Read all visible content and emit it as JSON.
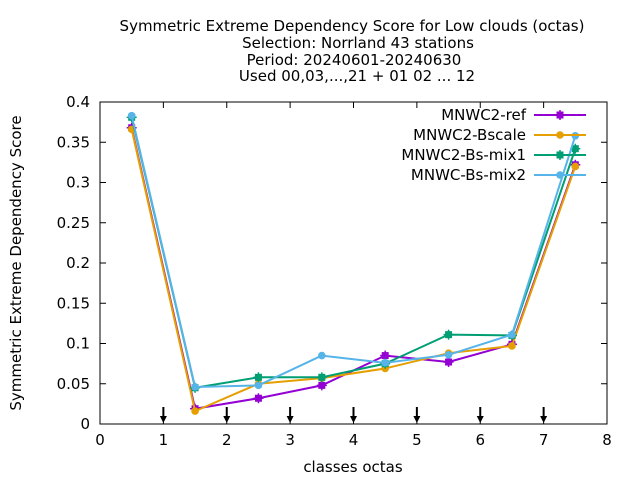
{
  "chart_data": {
    "type": "line",
    "title_lines": [
      "Symmetric Extreme Dependency Score  for Low clouds (octas)",
      "Selection: Norrland     43 stations",
      "Period: 20240601-20240630",
      "Used 00,03,...,21 + 01 02 ... 12"
    ],
    "xlabel": "classes octas",
    "ylabel": "Symmetric Extreme Dependency Score",
    "xlim": [
      0,
      8
    ],
    "ylim": [
      0,
      0.4
    ],
    "x_ticks": [
      0,
      1,
      2,
      3,
      4,
      5,
      6,
      7,
      8
    ],
    "x_tick_labels": [
      "0",
      "1",
      "2",
      "3",
      "4",
      "5",
      "6",
      "7",
      "8"
    ],
    "y_ticks": [
      0,
      0.05,
      0.1,
      0.15,
      0.2,
      0.25,
      0.3,
      0.35,
      0.4
    ],
    "y_tick_labels": [
      "0",
      "0.05",
      "0.1",
      "0.15",
      "0.2",
      "0.25",
      "0.3",
      "0.35",
      "0.4"
    ],
    "grid": false,
    "legend_position": "top-right",
    "arrow_markers_x": [
      1,
      2,
      3,
      4,
      5,
      6,
      7
    ],
    "x": [
      0.5,
      1.5,
      2.5,
      3.5,
      4.5,
      5.5,
      6.5,
      7.5
    ],
    "series": [
      {
        "name": "MNWC2-ref",
        "color": "#9400d3",
        "marker": "square-plus",
        "values": [
          0.368,
          0.019,
          0.032,
          0.048,
          0.085,
          0.077,
          0.099,
          0.322
        ]
      },
      {
        "name": "MNWC2-Bscale",
        "color": "#e69f00",
        "marker": "circle",
        "values": [
          0.366,
          0.016,
          0.05,
          0.057,
          0.069,
          0.088,
          0.097,
          0.32
        ]
      },
      {
        "name": "MNWC2-Bs-mix1",
        "color": "#009e73",
        "marker": "square-plus",
        "values": [
          0.381,
          0.045,
          0.058,
          0.058,
          0.075,
          0.111,
          0.11,
          0.342
        ]
      },
      {
        "name": "MNWC-Bs-mix2",
        "color": "#56b4e9",
        "marker": "circle",
        "values": [
          0.383,
          0.046,
          0.048,
          0.085,
          0.076,
          0.086,
          0.111,
          0.358
        ]
      }
    ]
  }
}
